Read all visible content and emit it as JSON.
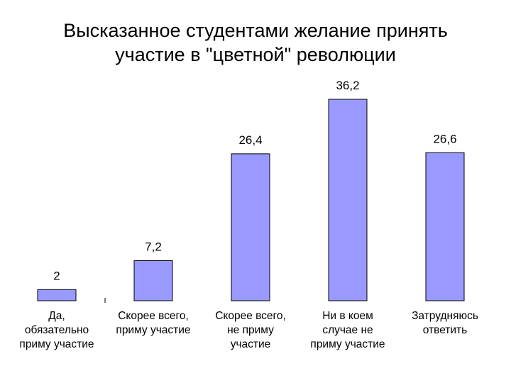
{
  "chart_data": {
    "type": "bar",
    "title_lines": [
      "Высказанное студентами желание принять",
      "участие в \"цветной\" революции"
    ],
    "categories": [
      [
        "Да,",
        "обязательно",
        "приму участие"
      ],
      [
        "Скорее всего,",
        "приму участие"
      ],
      [
        "Скорее всего,",
        "не приму",
        "участие"
      ],
      [
        "Ни в коем",
        "случае не",
        "приму участие"
      ],
      [
        "Затрудняюсь",
        "ответить"
      ]
    ],
    "values": [
      2,
      7.2,
      26.4,
      36.2,
      26.6
    ],
    "value_labels": [
      "2",
      "7,2",
      "26,4",
      "36,2",
      "26,6"
    ],
    "bar_color": "#9999ff",
    "ylim": [
      0,
      40
    ],
    "grid": false,
    "legend": "none"
  }
}
